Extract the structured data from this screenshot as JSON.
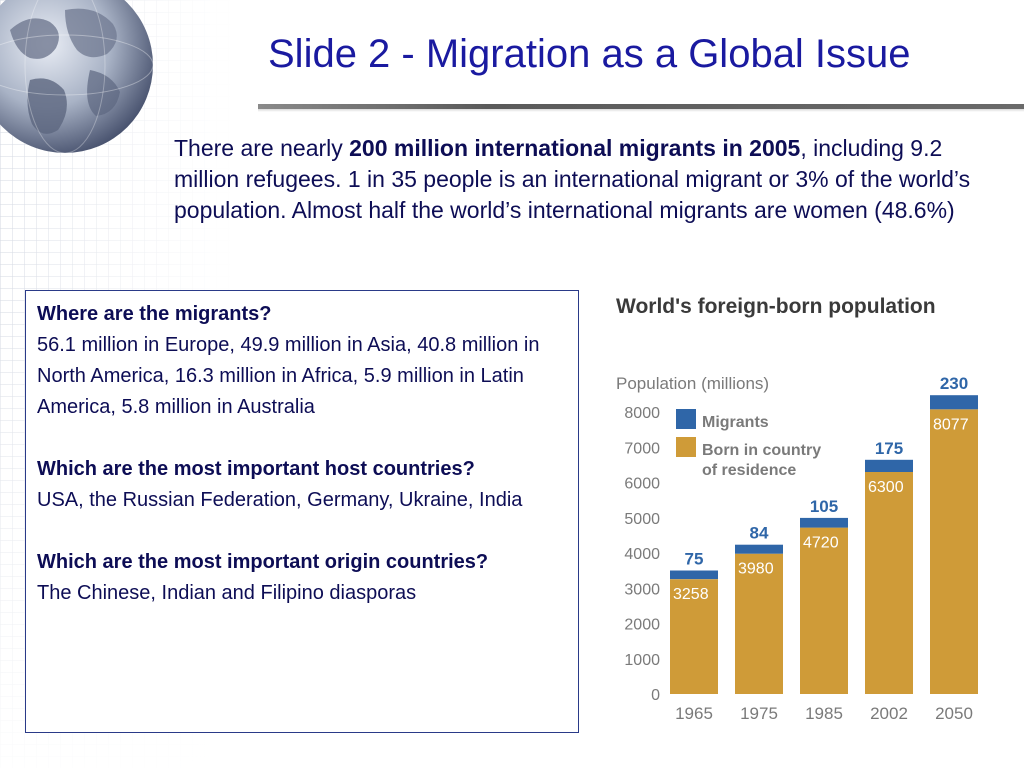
{
  "slide": {
    "title": "Slide 2 - Migration as a Global Issue",
    "intro": {
      "pre": "There are nearly ",
      "bold": "200 million international migrants in 2005",
      "post": ", including 9.2 million refugees. 1 in 35 people is an international migrant or 3% of the world’s population. Almost half the world’s international migrants are women (48.6%)"
    }
  },
  "box": {
    "q1": "Where are the migrants?",
    "a1": "56.1 million in Europe, 49.9 million in Asia, 40.8 million in North America, 16.3 million in Africa, 5.9 million in Latin America, 5.8 million in Australia",
    "q2": "Which are the most important host countries?",
    "a2": "USA, the Russian Federation, Germany, Ukraine, India",
    "q3": "Which are the most important origin countries?",
    "a3": "The Chinese, Indian and Filipino diasporas"
  },
  "colors": {
    "title": "#1a1aa0",
    "text": "#0d0d55",
    "migrants": "#2f66a8",
    "born": "#cf9b38",
    "label_blue": "#2f66a8",
    "axis_text": "#7a7a7a"
  },
  "chart_data": {
    "type": "bar",
    "stacked": true,
    "title": "World's foreign-born population",
    "ylabel": "Population (millions)",
    "categories": [
      "1965",
      "1975",
      "1985",
      "2002",
      "2050"
    ],
    "series": [
      {
        "name": "Migrants",
        "values": [
          75,
          84,
          105,
          175,
          230
        ]
      },
      {
        "name": "Born in country of residence",
        "values": [
          3258,
          3980,
          4720,
          6300,
          8077
        ]
      }
    ],
    "yticks": [
      "0",
      "1000",
      "2000",
      "3000",
      "4000",
      "5000",
      "6000",
      "7000",
      "8000"
    ],
    "ylim": [
      0,
      8400
    ],
    "legend_position": "top-left"
  }
}
